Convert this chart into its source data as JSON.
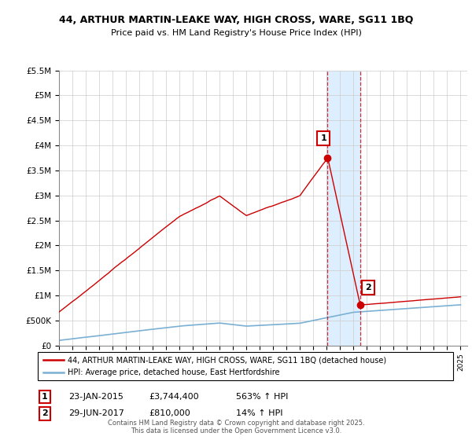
{
  "title": "44, ARTHUR MARTIN-LEAKE WAY, HIGH CROSS, WARE, SG11 1BQ",
  "subtitle": "Price paid vs. HM Land Registry's House Price Index (HPI)",
  "legend_line1": "44, ARTHUR MARTIN-LEAKE WAY, HIGH CROSS, WARE, SG11 1BQ (detached house)",
  "legend_line2": "HPI: Average price, detached house, East Hertfordshire",
  "sale1_label": "1",
  "sale1_date": "23-JAN-2015",
  "sale1_price": "£3,744,400",
  "sale1_hpi": "563% ↑ HPI",
  "sale2_label": "2",
  "sale2_date": "29-JUN-2017",
  "sale2_price": "£810,000",
  "sale2_hpi": "14% ↑ HPI",
  "footer": "Contains HM Land Registry data © Crown copyright and database right 2025.\nThis data is licensed under the Open Government Licence v3.0.",
  "red_color": "#cc0000",
  "blue_color": "#7ab0d4",
  "shaded_color": "#ddeeff",
  "ylim": [
    0,
    5500000
  ],
  "yticks": [
    0,
    500000,
    1000000,
    1500000,
    2000000,
    2500000,
    3000000,
    3500000,
    4000000,
    4500000,
    5000000,
    5500000
  ],
  "ytick_labels": [
    "£0",
    "£500K",
    "£1M",
    "£1.5M",
    "£2M",
    "£2.5M",
    "£3M",
    "£3.5M",
    "£4M",
    "£4.5M",
    "£5M",
    "£5.5M"
  ],
  "sale1_x": 2015.06,
  "sale1_y": 3744400,
  "sale2_x": 2017.49,
  "sale2_y": 810000,
  "xlim_left": 1995,
  "xlim_right": 2025.5
}
